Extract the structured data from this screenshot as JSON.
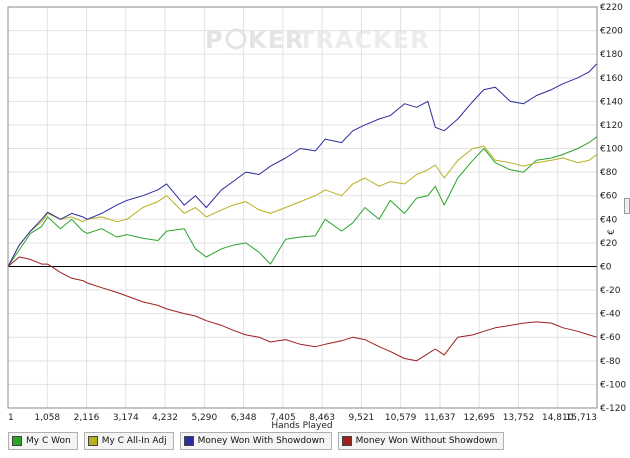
{
  "chart_data": {
    "type": "line",
    "title": "",
    "xlabel": "Hands Played",
    "ylabel": "€",
    "watermark": {
      "part1": "P",
      "part2": "KER",
      "part3": "TRACKER"
    },
    "xlim": [
      1,
      15713
    ],
    "ylim": [
      -120,
      220
    ],
    "x_ticks": [
      "1",
      "1,058",
      "2,116",
      "3,174",
      "4,232",
      "5,290",
      "6,348",
      "7,405",
      "8,463",
      "9,521",
      "10,579",
      "11,637",
      "12,695",
      "13,752",
      "14,810",
      "15,713"
    ],
    "y_ticks": [
      "€220",
      "€200",
      "€180",
      "€160",
      "€140",
      "€120",
      "€100",
      "€80",
      "€60",
      "€40",
      "€20",
      "€0",
      "€-20",
      "€-40",
      "€-60",
      "€-80",
      "€-100",
      "€-120"
    ],
    "y_tick_values": [
      220,
      200,
      180,
      160,
      140,
      120,
      100,
      80,
      60,
      40,
      20,
      0,
      -20,
      -40,
      -60,
      -80,
      -100,
      -120
    ],
    "x": [
      1,
      300,
      600,
      900,
      1058,
      1400,
      1700,
      2000,
      2116,
      2500,
      2900,
      3174,
      3600,
      4000,
      4232,
      4700,
      5000,
      5290,
      5700,
      6000,
      6348,
      6700,
      7000,
      7405,
      7800,
      8200,
      8463,
      8900,
      9200,
      9521,
      9900,
      10200,
      10579,
      10900,
      11200,
      11400,
      11637,
      12000,
      12400,
      12695,
      13000,
      13400,
      13752,
      14100,
      14500,
      14810,
      15200,
      15500,
      15713
    ],
    "series": [
      {
        "name": "My C Won",
        "color": "#2aa52a",
        "values": [
          0,
          14,
          28,
          34,
          42,
          32,
          40,
          30,
          28,
          32,
          25,
          27,
          24,
          22,
          30,
          32,
          15,
          8,
          15,
          18,
          20,
          12,
          2,
          23,
          25,
          26,
          40,
          30,
          37,
          50,
          40,
          56,
          45,
          58,
          60,
          68,
          52,
          75,
          90,
          100,
          88,
          82,
          80,
          90,
          92,
          95,
          100,
          105,
          110
        ]
      },
      {
        "name": "My C All-In Adj",
        "color": "#b8b020",
        "values": [
          0,
          18,
          30,
          38,
          45,
          40,
          42,
          38,
          40,
          42,
          38,
          40,
          50,
          55,
          60,
          45,
          50,
          42,
          48,
          52,
          55,
          48,
          45,
          50,
          55,
          60,
          65,
          60,
          70,
          75,
          68,
          72,
          70,
          78,
          82,
          86,
          75,
          90,
          100,
          102,
          90,
          88,
          85,
          88,
          90,
          92,
          88,
          90,
          95
        ]
      },
      {
        "name": "Money Won With Showdown",
        "color": "#2c2c9c",
        "values": [
          0,
          18,
          30,
          40,
          46,
          40,
          45,
          42,
          40,
          45,
          52,
          56,
          60,
          65,
          70,
          52,
          60,
          50,
          65,
          72,
          80,
          78,
          85,
          92,
          100,
          98,
          108,
          105,
          115,
          120,
          125,
          128,
          138,
          135,
          140,
          118,
          115,
          125,
          140,
          150,
          152,
          140,
          138,
          145,
          150,
          155,
          160,
          165,
          172
        ]
      },
      {
        "name": "Money Won Without Showdown",
        "color": "#9c2020",
        "values": [
          0,
          8,
          6,
          2,
          2,
          -5,
          -10,
          -12,
          -14,
          -18,
          -22,
          -25,
          -30,
          -33,
          -36,
          -40,
          -42,
          -46,
          -50,
          -54,
          -58,
          -60,
          -64,
          -62,
          -66,
          -68,
          -66,
          -63,
          -60,
          -62,
          -68,
          -72,
          -78,
          -80,
          -74,
          -70,
          -75,
          -60,
          -58,
          -55,
          -52,
          -50,
          -48,
          -47,
          -48,
          -52,
          -55,
          -58,
          -60
        ]
      }
    ]
  }
}
